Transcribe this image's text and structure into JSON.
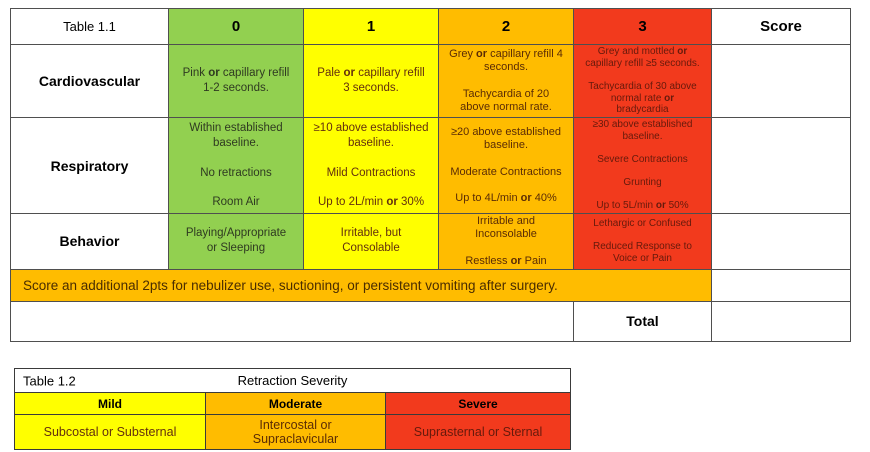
{
  "colors": {
    "score0_green": "#92d050",
    "score1_yellow": "#ffff00",
    "score2_orange": "#ffbc00",
    "score3_red": "#f23a1d"
  },
  "table1": {
    "title": "Table 1.1",
    "columns": [
      "0",
      "1",
      "2",
      "3"
    ],
    "score_header": "Score",
    "rows": [
      {
        "label": "Cardiovascular",
        "cells": [
          "Pink **or** capillary refill\n1-2 seconds.",
          "Pale **or** capillary refill\n3 seconds.",
          "Grey **or** capillary refill 4\nseconds.\n\nTachycardia of 20\nabove normal rate.",
          "Grey and mottled **or**\ncapillary refill ≥5 seconds.\n\nTachycardia of 30 above\nnormal rate **or**\nbradycardia"
        ]
      },
      {
        "label": "Respiratory",
        "cells": [
          "Within established\nbaseline.\n\nNo retractions\n\nRoom Air",
          "≥10 above established\nbaseline.\n\nMild Contractions\n\nUp to 2L/min **or** 30%",
          "≥20 above established\nbaseline.\n\nModerate Contractions\n\nUp to 4L/min **or** 40%",
          "≥30 above established\nbaseline.\n\nSevere Contractions\n\nGrunting\n\nUp to 5L/min **or** 50%"
        ]
      },
      {
        "label": "Behavior",
        "cells": [
          "Playing/Appropriate\nor Sleeping",
          "Irritable, but\nConsolable",
          "Irritable and\nInconsolable\n\nRestless **or** Pain",
          "Lethargic or Confused\n\nReduced Response to\nVoice or Pain"
        ]
      }
    ],
    "banner": "Score an additional 2pts for nebulizer use, suctioning, or persistent vomiting after surgery.",
    "total_label": "Total"
  },
  "table2": {
    "title": "Table 1.2",
    "header": "Retraction Severity",
    "columns": [
      {
        "label": "Mild",
        "value": "Subcostal or Substernal"
      },
      {
        "label": "Moderate",
        "value": "Intercostal or\nSupraclavicular"
      },
      {
        "label": "Severe",
        "value": "Suprasternal or Sternal"
      }
    ]
  }
}
